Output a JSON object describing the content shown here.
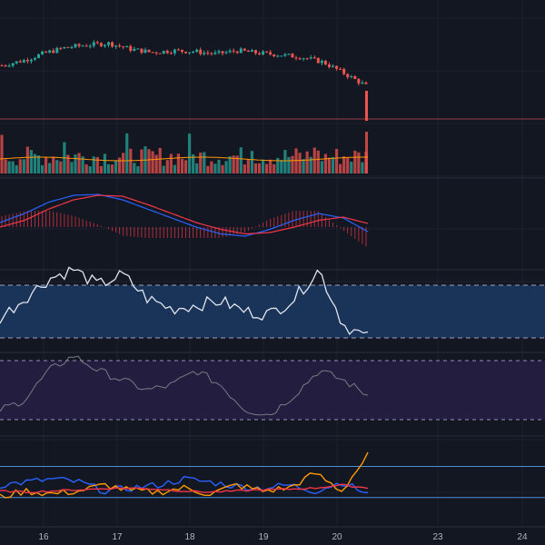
{
  "chart_data": {
    "type": "line",
    "x_tick_labels": [
      "16",
      "17",
      "18",
      "19",
      "20",
      "23",
      "24"
    ],
    "colors": {
      "background": "#131722",
      "grid": "#1e222d",
      "up": "#26a69a",
      "down": "#ef5350",
      "macd": "#2962ff",
      "signal": "#f23645",
      "rsi": "#e1e5ef",
      "rsi_band": "#1a3358",
      "stoch": "#787b86",
      "stoch_band": "#231d3f",
      "dmi_plus": "#ff9800",
      "dmi_minus": "#2962ff",
      "adx": "#f23645",
      "pane_divider": "#2a2e39",
      "guide_line": "#4a8fd6"
    },
    "panes": [
      {
        "name": "price",
        "type": "candlestick",
        "trend": [
          70,
          76,
          85,
          92,
          95,
          97,
          90,
          86,
          88,
          87,
          84,
          88,
          85,
          83,
          80,
          74,
          60,
          45
        ]
      },
      {
        "name": "volume",
        "type": "bar"
      },
      {
        "name": "macd",
        "type": "line+histogram",
        "macd": [
          10,
          30,
          55,
          70,
          72,
          60,
          40,
          20,
          0,
          -15,
          -20,
          -5,
          15,
          30,
          20,
          -10
        ],
        "signal": [
          0,
          15,
          40,
          60,
          70,
          68,
          50,
          30,
          10,
          -5,
          -15,
          -12,
          0,
          15,
          22,
          8
        ]
      },
      {
        "name": "rsi",
        "type": "line",
        "values": [
          45,
          60,
          75,
          82,
          70,
          78,
          60,
          52,
          55,
          58,
          50,
          48,
          60,
          82,
          40,
          30
        ],
        "levels": [
          70,
          30
        ]
      },
      {
        "name": "stochastic",
        "type": "line",
        "values": [
          30,
          40,
          70,
          85,
          70,
          60,
          50,
          55,
          70,
          55,
          30,
          25,
          45,
          70,
          60,
          45
        ],
        "levels": [
          80,
          20
        ]
      },
      {
        "name": "dmi",
        "type": "line",
        "plus_di": [
          20,
          30,
          25,
          30,
          40,
          30,
          28,
          35,
          25,
          40,
          30,
          35,
          60,
          30,
          90
        ],
        "minus_di": [
          40,
          45,
          50,
          45,
          30,
          35,
          40,
          50,
          45,
          38,
          35,
          40,
          30,
          45,
          25
        ],
        "adx": [
          30,
          28,
          30,
          32,
          34,
          35,
          33,
          30,
          28,
          30,
          32,
          33,
          35,
          40,
          35
        ],
        "levels": [
          25,
          50
        ]
      }
    ]
  }
}
